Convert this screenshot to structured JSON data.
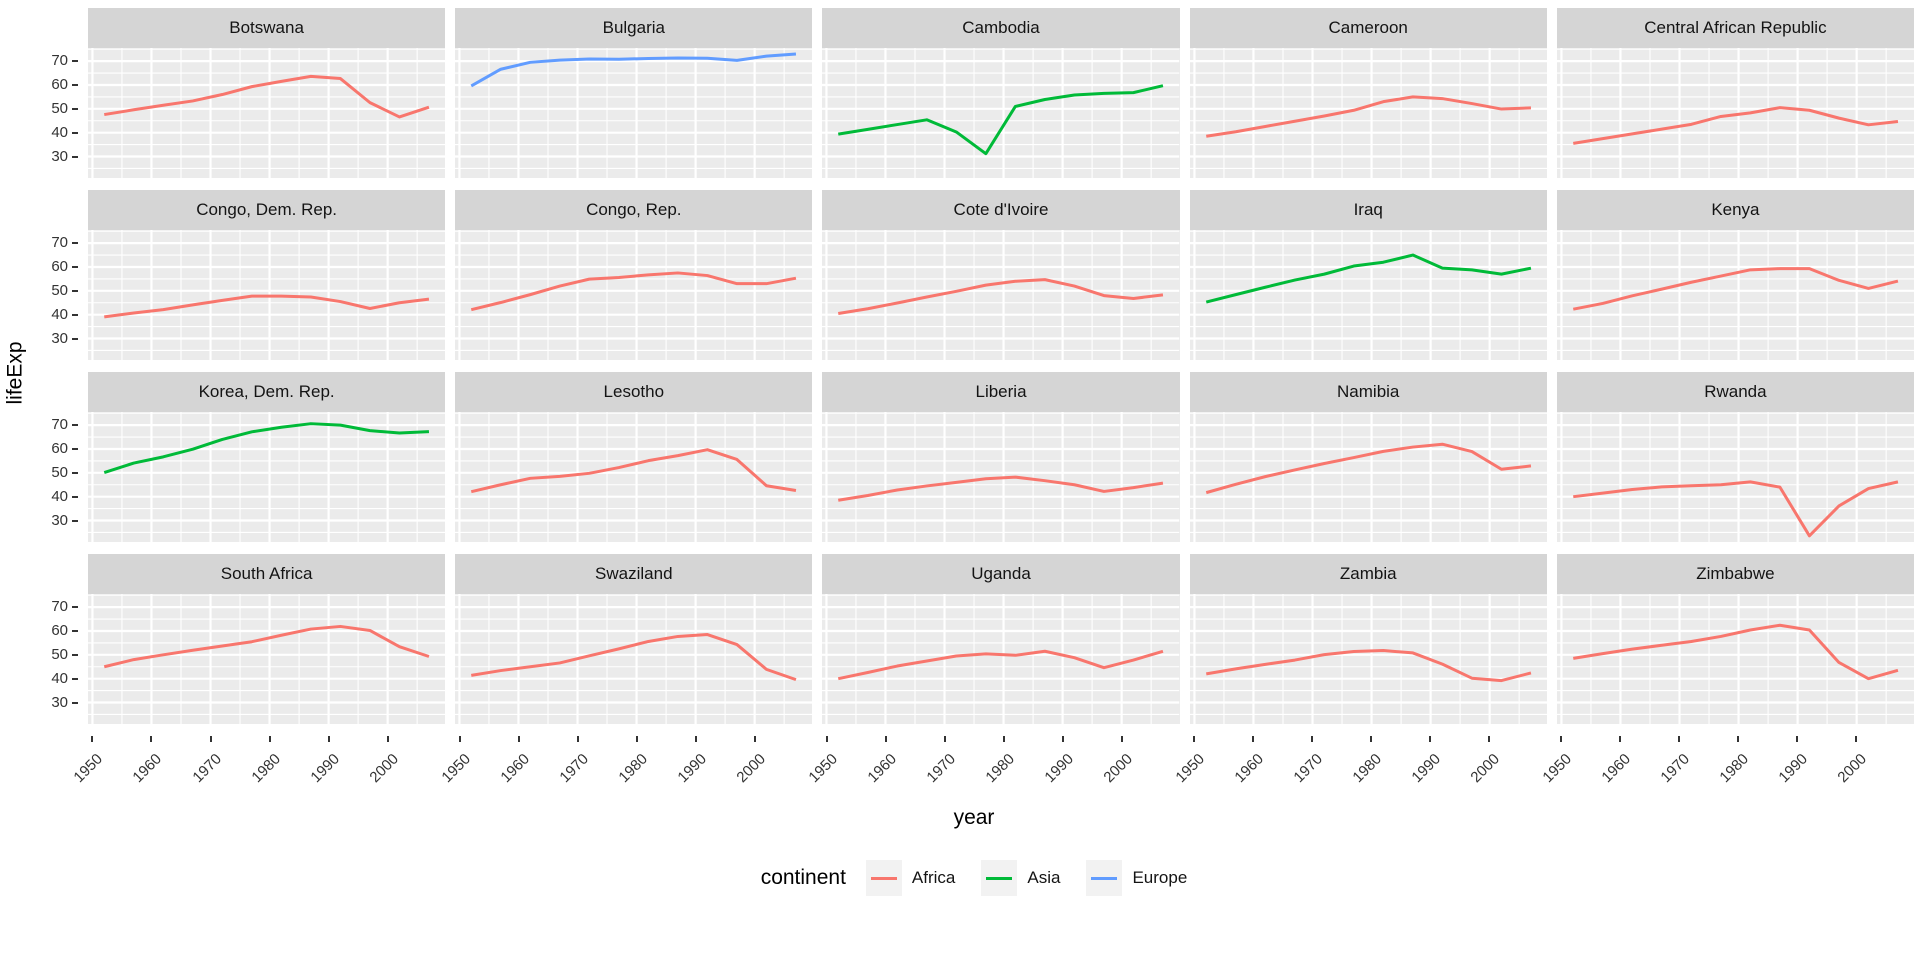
{
  "chart_data": {
    "type": "line",
    "xlabel": "year",
    "ylabel": "lifeExp",
    "x": [
      1952,
      1957,
      1962,
      1967,
      1972,
      1977,
      1982,
      1987,
      1992,
      1997,
      2002,
      2007
    ],
    "x_ticks": [
      1950,
      1960,
      1970,
      1980,
      1990,
      2000
    ],
    "x_minor": [
      1955,
      1965,
      1975,
      1985,
      1995,
      2005
    ],
    "y_ticks": [
      30,
      40,
      50,
      60,
      70
    ],
    "y_minor": [
      25,
      35,
      45,
      55,
      65,
      75
    ],
    "xlim": [
      1949.25,
      2009.75
    ],
    "ylim": [
      21.0,
      75.5
    ],
    "grid": "white major+minor gridlines on gray panel",
    "facets": {
      "rows": 4,
      "cols": 5
    },
    "palette": {
      "Africa": "#F8766D",
      "Asia": "#00BA38",
      "Europe": "#619CFF"
    },
    "panel_bg": "#EBEBEB",
    "strip_bg": "#D5D5D5",
    "legend": {
      "title": "continent",
      "position": "bottom",
      "entries": [
        {
          "label": "Africa",
          "color": "#F8766D"
        },
        {
          "label": "Asia",
          "color": "#00BA38"
        },
        {
          "label": "Europe",
          "color": "#619CFF"
        }
      ]
    },
    "series": [
      {
        "name": "Botswana",
        "continent": "Africa",
        "values": [
          47.6,
          49.6,
          51.5,
          53.3,
          56.0,
          59.3,
          61.5,
          63.6,
          62.7,
          52.6,
          46.6,
          50.7
        ]
      },
      {
        "name": "Bulgaria",
        "continent": "Europe",
        "values": [
          59.6,
          66.6,
          69.5,
          70.4,
          70.9,
          70.8,
          71.1,
          71.3,
          71.2,
          70.3,
          72.1,
          73.0
        ]
      },
      {
        "name": "Cambodia",
        "continent": "Asia",
        "values": [
          39.4,
          41.4,
          43.4,
          45.4,
          40.3,
          31.2,
          51.0,
          53.9,
          55.8,
          56.5,
          56.8,
          59.7
        ]
      },
      {
        "name": "Cameroon",
        "continent": "Africa",
        "values": [
          38.5,
          40.4,
          42.6,
          44.8,
          47.0,
          49.4,
          53.0,
          55.0,
          54.3,
          52.2,
          49.9,
          50.4
        ]
      },
      {
        "name": "Central African Republic",
        "continent": "Africa",
        "values": [
          35.5,
          37.5,
          39.5,
          41.5,
          43.5,
          46.8,
          48.3,
          50.5,
          49.4,
          46.1,
          43.3,
          44.7
        ]
      },
      {
        "name": "Congo, Dem. Rep.",
        "continent": "Africa",
        "values": [
          39.1,
          40.7,
          42.1,
          44.1,
          46.0,
          47.8,
          47.8,
          47.4,
          45.5,
          42.6,
          45.0,
          46.5
        ]
      },
      {
        "name": "Congo, Rep.",
        "continent": "Africa",
        "values": [
          42.1,
          45.1,
          48.4,
          52.0,
          54.9,
          55.6,
          56.7,
          57.5,
          56.4,
          53.0,
          53.0,
          55.3
        ]
      },
      {
        "name": "Cote d'Ivoire",
        "continent": "Africa",
        "values": [
          40.5,
          42.5,
          44.9,
          47.4,
          49.8,
          52.4,
          54.0,
          54.7,
          52.0,
          48.0,
          46.8,
          48.3
        ]
      },
      {
        "name": "Iraq",
        "continent": "Asia",
        "values": [
          45.3,
          48.4,
          51.5,
          54.5,
          57.0,
          60.4,
          62.0,
          65.0,
          59.5,
          58.8,
          57.0,
          59.5
        ]
      },
      {
        "name": "Kenya",
        "continent": "Africa",
        "values": [
          42.3,
          44.7,
          47.9,
          50.7,
          53.6,
          56.2,
          58.8,
          59.3,
          59.3,
          54.4,
          51.0,
          54.1
        ]
      },
      {
        "name": "Korea, Dem. Rep.",
        "continent": "Asia",
        "values": [
          50.1,
          54.1,
          56.7,
          59.9,
          64.0,
          67.2,
          69.1,
          70.6,
          70.0,
          67.7,
          66.7,
          67.3
        ]
      },
      {
        "name": "Lesotho",
        "continent": "Africa",
        "values": [
          42.1,
          45.0,
          47.7,
          48.5,
          49.8,
          52.2,
          55.1,
          57.2,
          59.7,
          55.6,
          44.6,
          42.6
        ]
      },
      {
        "name": "Liberia",
        "continent": "Africa",
        "values": [
          38.5,
          40.5,
          42.8,
          44.5,
          46.0,
          47.5,
          48.2,
          46.7,
          45.0,
          42.2,
          43.8,
          45.7
        ]
      },
      {
        "name": "Namibia",
        "continent": "Africa",
        "values": [
          41.7,
          45.2,
          48.4,
          51.2,
          53.9,
          56.4,
          59.0,
          60.8,
          62.0,
          58.9,
          51.5,
          52.9
        ]
      },
      {
        "name": "Rwanda",
        "continent": "Africa",
        "values": [
          40.0,
          41.5,
          43.0,
          44.1,
          44.6,
          45.0,
          46.2,
          44.0,
          23.6,
          36.1,
          43.4,
          46.2
        ]
      },
      {
        "name": "South Africa",
        "continent": "Africa",
        "values": [
          45.0,
          48.0,
          50.0,
          51.9,
          53.7,
          55.5,
          58.2,
          60.8,
          61.9,
          60.2,
          53.4,
          49.3
        ]
      },
      {
        "name": "Swaziland",
        "continent": "Africa",
        "values": [
          41.4,
          43.4,
          45.0,
          46.6,
          49.6,
          52.5,
          55.6,
          57.7,
          58.5,
          54.3,
          43.9,
          39.6
        ]
      },
      {
        "name": "Uganda",
        "continent": "Africa",
        "values": [
          40.0,
          42.6,
          45.3,
          47.4,
          49.5,
          50.4,
          49.8,
          51.5,
          48.8,
          44.6,
          47.8,
          51.5
        ]
      },
      {
        "name": "Zambia",
        "continent": "Africa",
        "values": [
          42.0,
          44.1,
          46.0,
          47.8,
          50.1,
          51.4,
          51.8,
          50.8,
          46.1,
          40.2,
          39.2,
          42.4
        ]
      },
      {
        "name": "Zimbabwe",
        "continent": "Africa",
        "values": [
          48.5,
          50.5,
          52.4,
          54.0,
          55.6,
          57.7,
          60.4,
          62.4,
          60.4,
          46.8,
          40.0,
          43.5
        ]
      }
    ]
  }
}
